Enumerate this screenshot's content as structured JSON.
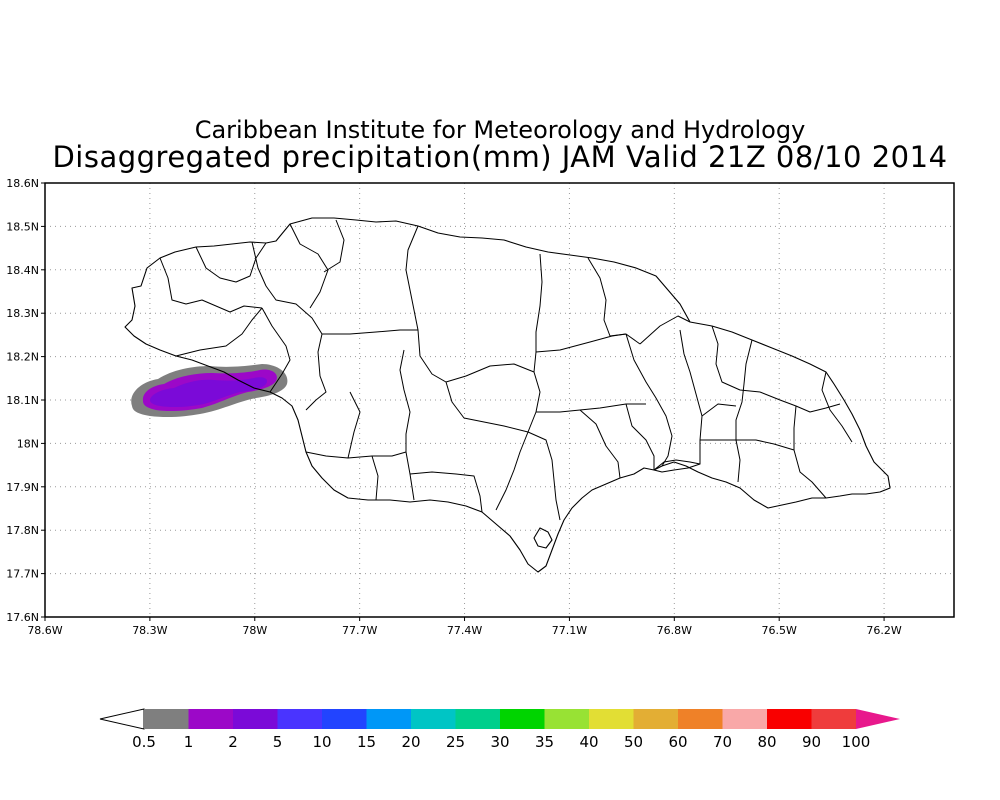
{
  "title": {
    "line1": "Caribbean Institute for Meteorology and Hydrology",
    "line2": "Disaggregated precipitation(mm) JAM Valid 21Z 08/10 2014"
  },
  "map": {
    "lon_range": [
      -78.6,
      -76.0
    ],
    "lat_range": [
      17.6,
      18.6
    ],
    "x_ticks": [
      {
        "value": -78.6,
        "label": "78.6W"
      },
      {
        "value": -78.3,
        "label": "78.3W"
      },
      {
        "value": -78.0,
        "label": "78W"
      },
      {
        "value": -77.7,
        "label": "77.7W"
      },
      {
        "value": -77.4,
        "label": "77.4W"
      },
      {
        "value": -77.1,
        "label": "77.1W"
      },
      {
        "value": -76.8,
        "label": "76.8W"
      },
      {
        "value": -76.5,
        "label": "76.5W"
      },
      {
        "value": -76.2,
        "label": "76.2W"
      }
    ],
    "y_ticks": [
      {
        "value": 17.6,
        "label": "17.6N"
      },
      {
        "value": 17.7,
        "label": "17.7N"
      },
      {
        "value": 17.8,
        "label": "17.8N"
      },
      {
        "value": 17.9,
        "label": "17.9N"
      },
      {
        "value": 18.0,
        "label": "18N"
      },
      {
        "value": 18.1,
        "label": "18.1N"
      },
      {
        "value": 18.2,
        "label": "18.2N"
      },
      {
        "value": 18.3,
        "label": "18.3N"
      },
      {
        "value": 18.4,
        "label": "18.4N"
      },
      {
        "value": 18.5,
        "label": "18.5N"
      },
      {
        "value": 18.6,
        "label": "18.6N"
      }
    ],
    "grid": "dotted",
    "precip_region": {
      "location": "western Jamaica, near 78.3W-77.9W, 18.1N-18.2N",
      "max_class": "2-5 mm",
      "colors": {
        "0.5-1": "#7f7f7f",
        "1-2": "#9c08c8",
        "2-5": "#7b0ad8"
      }
    }
  },
  "colorbar": {
    "labels": [
      "0.5",
      "1",
      "2",
      "5",
      "10",
      "15",
      "20",
      "25",
      "30",
      "35",
      "40",
      "50",
      "60",
      "70",
      "80",
      "90",
      "100"
    ],
    "colors": [
      "#7f7f7f",
      "#9c08c8",
      "#7b0ad8",
      "#4a34ff",
      "#2244ff",
      "#0097f7",
      "#00c5c5",
      "#00cf8c",
      "#00d400",
      "#98e234",
      "#e2de34",
      "#e3ae34",
      "#ef8128",
      "#f9a8a8",
      "#f90000",
      "#ef3c3c"
    ],
    "under_color": "#ffffff",
    "over_color": "#e8188c"
  }
}
